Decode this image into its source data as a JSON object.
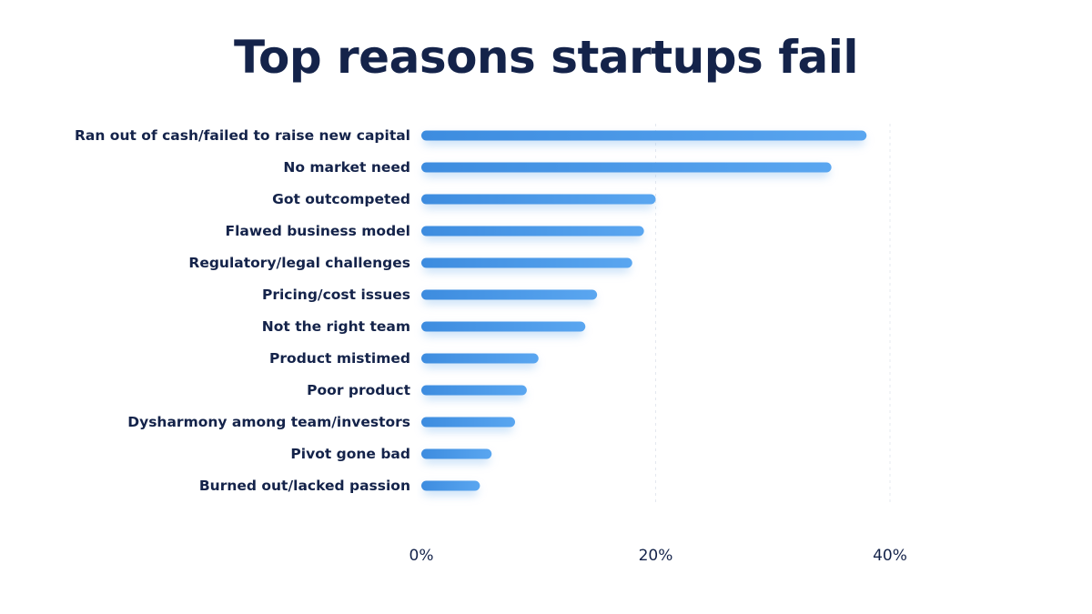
{
  "colors": {
    "title": "#14234a",
    "label": "#14234a",
    "bar_start": "#3d8cdf",
    "bar_end": "#5aa6f0",
    "bar_glow": "#9cc7f2",
    "grid": "#e4e8ef"
  },
  "chart_data": {
    "type": "bar",
    "orientation": "horizontal",
    "title": "Top reasons startups fail",
    "xlabel": "",
    "ylabel": "",
    "categories": [
      "Ran out of cash/failed to raise new capital",
      "No market need",
      "Got outcompeted",
      "Flawed business model",
      "Regulatory/legal challenges",
      "Pricing/cost issues",
      "Not the right team",
      "Product mistimed",
      "Poor product",
      "Dysharmony among team/investors",
      "Pivot gone bad",
      "Burned out/lacked passion"
    ],
    "values": [
      38,
      35,
      20,
      19,
      18,
      15,
      14,
      10,
      9,
      8,
      6,
      5
    ],
    "value_unit": "%",
    "xlim": [
      0,
      40
    ],
    "x_ticks": [
      0,
      20,
      40
    ],
    "x_tick_labels": [
      "0%",
      "20%",
      "40%"
    ],
    "grid": "vertical dashed at ticks",
    "legend": "none"
  }
}
